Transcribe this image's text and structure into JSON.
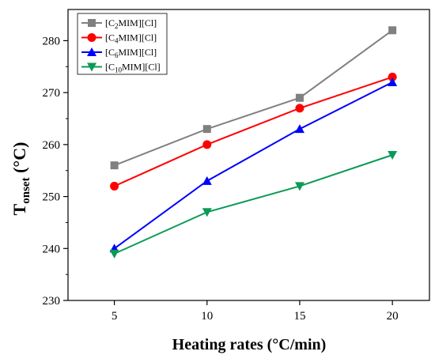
{
  "chart_data": {
    "type": "line",
    "x": [
      5,
      10,
      15,
      20
    ],
    "xlim": [
      2.5,
      22
    ],
    "ylim": [
      230,
      286
    ],
    "xticks": [
      5,
      10,
      15,
      20
    ],
    "yticks": [
      230,
      240,
      250,
      260,
      270,
      280
    ],
    "grid": false,
    "legend_position": "top-left",
    "xlabel": "Heating rates (°C/min)",
    "ylabel": {
      "main": "T",
      "sub": "onset",
      "unit": " (°C)"
    },
    "series": [
      {
        "name": {
          "pre": "[C",
          "sub": "2",
          "post": "MIM][Cl]"
        },
        "color": "#808080",
        "marker": "square",
        "values": [
          256,
          263,
          269,
          282
        ]
      },
      {
        "name": {
          "pre": "[C",
          "sub": "4",
          "post": "MIM][Cl]"
        },
        "color": "#ff0000",
        "marker": "circle",
        "values": [
          252,
          260,
          267,
          273
        ]
      },
      {
        "name": {
          "pre": "[C",
          "sub": "6",
          "post": "MIM][Cl]"
        },
        "color": "#0000ff",
        "marker": "triangle-up",
        "values": [
          240,
          253,
          263,
          272
        ]
      },
      {
        "name": {
          "pre": "[C",
          "sub": "10",
          "post": "MIM][Cl]"
        },
        "color": "#0b9a55",
        "marker": "triangle-down",
        "values": [
          239,
          247,
          252,
          258
        ]
      }
    ]
  }
}
